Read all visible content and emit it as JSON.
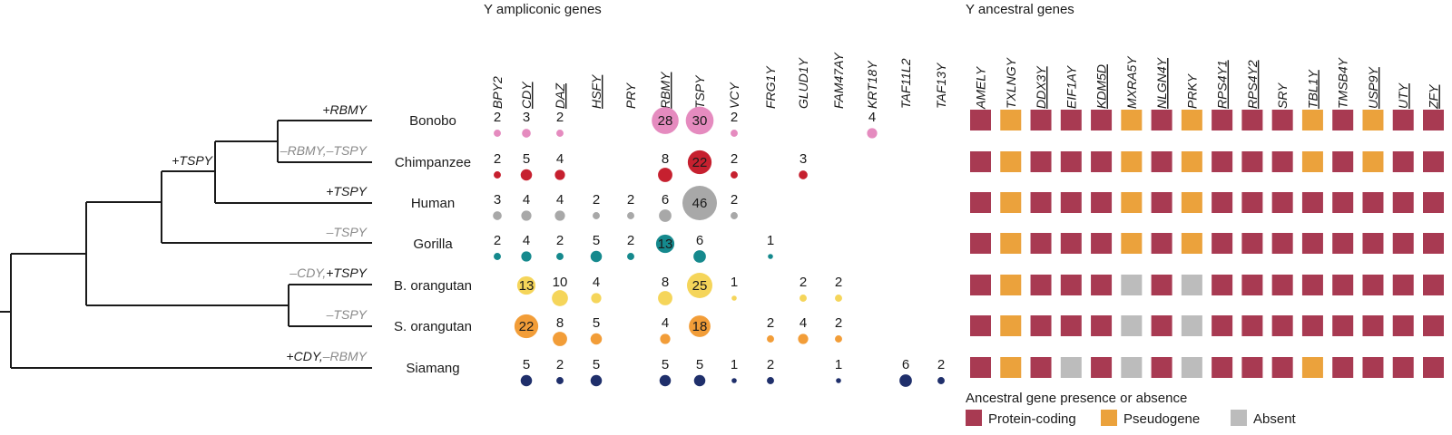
{
  "headings": {
    "ampliconic": "Y ampliconic genes",
    "ancestral": "Y ancestral genes"
  },
  "ampliconic_genes": [
    {
      "name": "BPY2",
      "underlined": false
    },
    {
      "name": "CDY",
      "underlined": true
    },
    {
      "name": "DAZ",
      "underlined": true
    },
    {
      "name": "HSFY",
      "underlined": true
    },
    {
      "name": "PRY",
      "underlined": false
    },
    {
      "name": "RBMY",
      "underlined": true
    },
    {
      "name": "TSPY",
      "underlined": false
    },
    {
      "name": "VCY",
      "underlined": false
    },
    {
      "name": "FRG1Y",
      "underlined": false
    },
    {
      "name": "GLUD1Y",
      "underlined": false
    },
    {
      "name": "FAM47AY",
      "underlined": false
    },
    {
      "name": "KRT18Y",
      "underlined": false
    },
    {
      "name": "TAF11L2",
      "underlined": false
    },
    {
      "name": "TAF13Y",
      "underlined": false
    }
  ],
  "ancestral_genes": [
    {
      "name": "AMELY",
      "underlined": false
    },
    {
      "name": "TXLNGY",
      "underlined": false
    },
    {
      "name": "DDX3Y",
      "underlined": true
    },
    {
      "name": "EIF1AY",
      "underlined": false
    },
    {
      "name": "KDM5D",
      "underlined": true
    },
    {
      "name": "MXRA5Y",
      "underlined": false
    },
    {
      "name": "NLGN4Y",
      "underlined": true
    },
    {
      "name": "PRKY",
      "underlined": false
    },
    {
      "name": "RPS4Y1",
      "underlined": true
    },
    {
      "name": "RPS4Y2",
      "underlined": true
    },
    {
      "name": "SRY",
      "underlined": false
    },
    {
      "name": "TBL1Y",
      "underlined": true
    },
    {
      "name": "TMSB4Y",
      "underlined": false
    },
    {
      "name": "USP9Y",
      "underlined": true
    },
    {
      "name": "UTY",
      "underlined": true
    },
    {
      "name": "ZFY",
      "underlined": true
    }
  ],
  "species": [
    {
      "name": "Bonobo",
      "color": "#e58bbf",
      "copies": [
        2,
        3,
        2,
        null,
        null,
        28,
        30,
        2,
        null,
        null,
        null,
        4,
        null,
        null
      ],
      "status": [
        "P",
        "X",
        "P",
        "P",
        "P",
        "X",
        "P",
        "X",
        "P",
        "P",
        "P",
        "X",
        "P",
        "X",
        "P",
        "P"
      ]
    },
    {
      "name": "Chimpanzee",
      "color": "#c6202f",
      "copies": [
        2,
        5,
        4,
        null,
        null,
        8,
        22,
        2,
        null,
        3,
        null,
        null,
        null,
        null
      ],
      "status": [
        "P",
        "X",
        "P",
        "P",
        "P",
        "X",
        "P",
        "X",
        "P",
        "P",
        "P",
        "X",
        "P",
        "X",
        "P",
        "P"
      ]
    },
    {
      "name": "Human",
      "color": "#a8a8a8",
      "copies": [
        3,
        4,
        4,
        2,
        2,
        6,
        46,
        2,
        null,
        null,
        null,
        null,
        null,
        null
      ],
      "status": [
        "P",
        "X",
        "P",
        "P",
        "P",
        "X",
        "P",
        "X",
        "P",
        "P",
        "P",
        "P",
        "P",
        "P",
        "P",
        "P"
      ]
    },
    {
      "name": "Gorilla",
      "color": "#15898d",
      "copies": [
        2,
        4,
        2,
        5,
        2,
        13,
        6,
        null,
        1,
        null,
        null,
        null,
        null,
        null
      ],
      "status": [
        "P",
        "X",
        "P",
        "P",
        "P",
        "X",
        "P",
        "X",
        "P",
        "P",
        "P",
        "P",
        "P",
        "P",
        "P",
        "P"
      ]
    },
    {
      "name": "B. orangutan",
      "color": "#f5d55a",
      "copies": [
        null,
        13,
        10,
        4,
        null,
        8,
        25,
        1,
        null,
        2,
        2,
        null,
        null,
        null
      ],
      "status": [
        "P",
        "X",
        "P",
        "P",
        "P",
        "A",
        "P",
        "A",
        "P",
        "P",
        "P",
        "P",
        "P",
        "P",
        "P",
        "P"
      ]
    },
    {
      "name": "S. orangutan",
      "color": "#f29d38",
      "copies": [
        null,
        22,
        8,
        5,
        null,
        4,
        18,
        null,
        2,
        4,
        2,
        null,
        null,
        null
      ],
      "status": [
        "P",
        "X",
        "P",
        "P",
        "P",
        "A",
        "P",
        "A",
        "P",
        "P",
        "P",
        "P",
        "P",
        "P",
        "P",
        "P"
      ]
    },
    {
      "name": "Siamang",
      "color": "#1f2f6b",
      "copies": [
        null,
        5,
        2,
        5,
        null,
        5,
        5,
        1,
        2,
        null,
        1,
        null,
        6,
        2
      ],
      "status": [
        "P",
        "X",
        "P",
        "A",
        "P",
        "A",
        "P",
        "A",
        "P",
        "P",
        "P",
        "X",
        "P",
        "P",
        "P",
        "P"
      ]
    }
  ],
  "tree_events": [
    {
      "id": "bonobo",
      "parts": [
        {
          "t": "+RBMY",
          "c": "#1a1a1a"
        }
      ]
    },
    {
      "id": "chimp",
      "parts": [
        {
          "t": "–RBMY,–TSPY",
          "c": "#8a8a8a"
        }
      ]
    },
    {
      "id": "pan",
      "parts": [
        {
          "t": "+TSPY",
          "c": "#1a1a1a"
        }
      ]
    },
    {
      "id": "human",
      "parts": [
        {
          "t": "+TSPY",
          "c": "#1a1a1a"
        }
      ]
    },
    {
      "id": "gorilla",
      "parts": [
        {
          "t": "–TSPY",
          "c": "#8a8a8a"
        }
      ]
    },
    {
      "id": "borang",
      "parts": [
        {
          "t": "–CDY,",
          "c": "#8a8a8a"
        },
        {
          "t": "+TSPY",
          "c": "#1a1a1a"
        }
      ]
    },
    {
      "id": "sorang",
      "parts": [
        {
          "t": "–TSPY",
          "c": "#8a8a8a"
        }
      ]
    },
    {
      "id": "siamang",
      "parts": [
        {
          "t": "+CDY,",
          "c": "#1a1a1a"
        },
        {
          "t": "–RBMY",
          "c": "#8a8a8a"
        }
      ]
    }
  ],
  "legend": {
    "title": "Ancestral gene presence or absence",
    "items": [
      {
        "key": "P",
        "label": "Protein-coding",
        "color": "#a83a52"
      },
      {
        "key": "X",
        "label": "Pseudogene",
        "color": "#eba23c"
      },
      {
        "key": "A",
        "label": "Absent",
        "color": "#bcbcbc"
      }
    ]
  }
}
